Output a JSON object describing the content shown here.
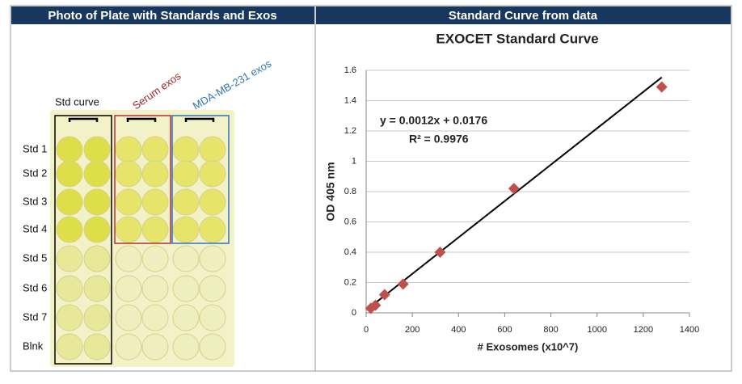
{
  "left_panel": {
    "header": "Photo of Plate with Standards and Exos",
    "column_labels": [
      "Std curve",
      "Serum exos",
      "MDA-MB-231 exos"
    ],
    "row_labels": [
      "Std 1",
      "Std 2",
      "Std 3",
      "Std 4",
      "Std 5",
      "Std 6",
      "Std 7",
      "Blnk"
    ]
  },
  "right_panel": {
    "header": "Standard Curve from data"
  },
  "chart_data": {
    "type": "scatter",
    "title": "EXOCET Standard Curve",
    "x_label": "# Exosomes (x10^7)",
    "y_label": "OD 405 nm",
    "annotations": [
      "y = 0.0012x + 0.0176",
      "R² = 0.9976"
    ],
    "trendline": {
      "slope": 0.0012,
      "intercept": 0.0176
    },
    "series": [
      {
        "color": "#c0504d",
        "x": [
          1280,
          640,
          320,
          160,
          80,
          40,
          20
        ],
        "values": [
          1.49,
          0.82,
          0.4,
          0.19,
          0.12,
          0.05,
          0.03
        ]
      }
    ],
    "xlim": [
      0,
      1400
    ],
    "xticks": [
      0,
      200,
      400,
      600,
      800,
      1000,
      1200,
      1400
    ],
    "ylim": [
      0,
      1.6
    ],
    "yticks": [
      0,
      0.2,
      0.4,
      0.6,
      0.8,
      1,
      1.2,
      1.4,
      1.6
    ],
    "grid": true
  }
}
